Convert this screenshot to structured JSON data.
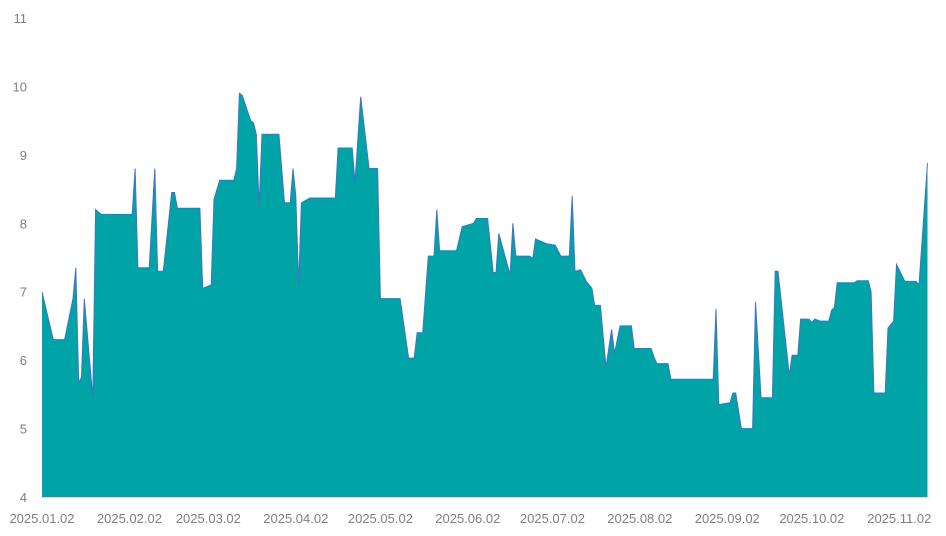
{
  "chart_data": {
    "type": "area",
    "title": "",
    "xlabel": "",
    "ylabel": "",
    "ylim": [
      4,
      11
    ],
    "yticks": [
      "4",
      "5",
      "6",
      "7",
      "8",
      "9",
      "10",
      "11"
    ],
    "xticks": [
      {
        "date": "2025-01-02",
        "label": "2025.01.02"
      },
      {
        "date": "2025-02-02",
        "label": "2025.02.02"
      },
      {
        "date": "2025-03-02",
        "label": "2025.03.02"
      },
      {
        "date": "2025-04-02",
        "label": "2025.04.02"
      },
      {
        "date": "2025-05-02",
        "label": "2025.05.02"
      },
      {
        "date": "2025-06-02",
        "label": "2025.06.02"
      },
      {
        "date": "2025-07-02",
        "label": "2025.07.02"
      },
      {
        "date": "2025-08-02",
        "label": "2025.08.02"
      },
      {
        "date": "2025-09-02",
        "label": "2025.09.02"
      },
      {
        "date": "2025-10-02",
        "label": "2025.10.02"
      },
      {
        "date": "2025-11-02",
        "label": "2025.11.02"
      }
    ],
    "grid": false,
    "legend": "none",
    "colors": {
      "fill": "#00A3A6",
      "line": "#4472C4",
      "axis": "#d9d9d9",
      "tick_text": "#7f7f7f"
    },
    "series": [
      {
        "points": [
          [
            "2025-01-02",
            7.0
          ],
          [
            "2025-01-06",
            6.3
          ],
          [
            "2025-01-10",
            6.3
          ],
          [
            "2025-01-13",
            6.9
          ],
          [
            "2025-01-14",
            7.35
          ],
          [
            "2025-01-15",
            5.67
          ],
          [
            "2025-01-16",
            5.75
          ],
          [
            "2025-01-17",
            6.9
          ],
          [
            "2025-01-20",
            5.45
          ],
          [
            "2025-01-21",
            8.2
          ],
          [
            "2025-01-23",
            8.13
          ],
          [
            "2025-02-03",
            8.13
          ],
          [
            "2025-02-04",
            8.8
          ],
          [
            "2025-02-05",
            7.35
          ],
          [
            "2025-02-09",
            7.35
          ],
          [
            "2025-02-11",
            8.8
          ],
          [
            "2025-02-12",
            7.3
          ],
          [
            "2025-02-14",
            7.3
          ],
          [
            "2025-02-17",
            8.45
          ],
          [
            "2025-02-18",
            8.45
          ],
          [
            "2025-02-19",
            8.22
          ],
          [
            "2025-02-27",
            8.22
          ],
          [
            "2025-02-28",
            7.05
          ],
          [
            "2025-03-03",
            7.1
          ],
          [
            "2025-03-04",
            8.35
          ],
          [
            "2025-03-06",
            8.63
          ],
          [
            "2025-03-11",
            8.63
          ],
          [
            "2025-03-12",
            8.8
          ],
          [
            "2025-03-13",
            9.9
          ],
          [
            "2025-03-14",
            9.87
          ],
          [
            "2025-03-17",
            9.5
          ],
          [
            "2025-03-18",
            9.47
          ],
          [
            "2025-03-19",
            9.3
          ],
          [
            "2025-03-20",
            8.25
          ],
          [
            "2025-03-21",
            9.3
          ],
          [
            "2025-03-27",
            9.3
          ],
          [
            "2025-03-29",
            8.3
          ],
          [
            "2025-03-31",
            8.3
          ],
          [
            "2025-04-01",
            8.8
          ],
          [
            "2025-04-02",
            8.4
          ],
          [
            "2025-04-03",
            7.1
          ],
          [
            "2025-04-04",
            8.3
          ],
          [
            "2025-04-07",
            8.37
          ],
          [
            "2025-04-16",
            8.37
          ],
          [
            "2025-04-17",
            9.1
          ],
          [
            "2025-04-22",
            9.1
          ],
          [
            "2025-04-23",
            8.6
          ],
          [
            "2025-04-25",
            9.85
          ],
          [
            "2025-04-28",
            8.8
          ],
          [
            "2025-05-01",
            8.8
          ],
          [
            "2025-05-02",
            6.9
          ],
          [
            "2025-05-09",
            6.9
          ],
          [
            "2025-05-12",
            6.03
          ],
          [
            "2025-05-14",
            6.03
          ],
          [
            "2025-05-15",
            6.4
          ],
          [
            "2025-05-17",
            6.4
          ],
          [
            "2025-05-19",
            7.52
          ],
          [
            "2025-05-21",
            7.52
          ],
          [
            "2025-05-22",
            8.2
          ],
          [
            "2025-05-23",
            7.6
          ],
          [
            "2025-05-29",
            7.6
          ],
          [
            "2025-05-31",
            7.95
          ],
          [
            "2025-06-04",
            8.0
          ],
          [
            "2025-06-05",
            8.07
          ],
          [
            "2025-06-09",
            8.07
          ],
          [
            "2025-06-11",
            7.28
          ],
          [
            "2025-06-12",
            7.28
          ],
          [
            "2025-06-13",
            7.85
          ],
          [
            "2025-06-17",
            7.25
          ],
          [
            "2025-06-18",
            8.0
          ],
          [
            "2025-06-19",
            7.52
          ],
          [
            "2025-06-24",
            7.52
          ],
          [
            "2025-06-25",
            7.48
          ],
          [
            "2025-06-26",
            7.77
          ],
          [
            "2025-06-30",
            7.7
          ],
          [
            "2025-07-03",
            7.68
          ],
          [
            "2025-07-05",
            7.52
          ],
          [
            "2025-07-08",
            7.52
          ],
          [
            "2025-07-09",
            8.4
          ],
          [
            "2025-07-10",
            7.3
          ],
          [
            "2025-07-12",
            7.32
          ],
          [
            "2025-07-14",
            7.15
          ],
          [
            "2025-07-16",
            7.05
          ],
          [
            "2025-07-17",
            6.8
          ],
          [
            "2025-07-19",
            6.8
          ],
          [
            "2025-07-21",
            5.9
          ],
          [
            "2025-07-23",
            6.45
          ],
          [
            "2025-07-24",
            6.1
          ],
          [
            "2025-07-26",
            6.5
          ],
          [
            "2025-07-30",
            6.5
          ],
          [
            "2025-07-31",
            6.17
          ],
          [
            "2025-08-06",
            6.17
          ],
          [
            "2025-08-07",
            6.05
          ],
          [
            "2025-08-08",
            5.95
          ],
          [
            "2025-08-12",
            5.95
          ],
          [
            "2025-08-13",
            5.72
          ],
          [
            "2025-08-28",
            5.72
          ],
          [
            "2025-08-29",
            6.75
          ],
          [
            "2025-08-30",
            5.35
          ],
          [
            "2025-09-03",
            5.38
          ],
          [
            "2025-09-04",
            5.52
          ],
          [
            "2025-09-05",
            5.52
          ],
          [
            "2025-09-07",
            5.0
          ],
          [
            "2025-09-11",
            5.0
          ],
          [
            "2025-09-12",
            6.85
          ],
          [
            "2025-09-14",
            5.45
          ],
          [
            "2025-09-18",
            5.45
          ],
          [
            "2025-09-19",
            7.3
          ],
          [
            "2025-09-20",
            7.3
          ],
          [
            "2025-09-24",
            5.78
          ],
          [
            "2025-09-25",
            6.07
          ],
          [
            "2025-09-27",
            6.07
          ],
          [
            "2025-09-28",
            6.6
          ],
          [
            "2025-10-01",
            6.6
          ],
          [
            "2025-10-02",
            6.55
          ],
          [
            "2025-10-03",
            6.6
          ],
          [
            "2025-10-05",
            6.57
          ],
          [
            "2025-10-08",
            6.57
          ],
          [
            "2025-10-09",
            6.73
          ],
          [
            "2025-10-10",
            6.77
          ],
          [
            "2025-10-11",
            7.13
          ],
          [
            "2025-10-17",
            7.13
          ],
          [
            "2025-10-18",
            7.16
          ],
          [
            "2025-10-22",
            7.16
          ],
          [
            "2025-10-23",
            7.0
          ],
          [
            "2025-10-24",
            5.52
          ],
          [
            "2025-10-28",
            5.52
          ],
          [
            "2025-10-29",
            6.47
          ],
          [
            "2025-10-31",
            6.57
          ],
          [
            "2025-11-01",
            7.4
          ],
          [
            "2025-11-04",
            7.15
          ],
          [
            "2025-11-08",
            7.15
          ],
          [
            "2025-11-09",
            7.1
          ],
          [
            "2025-11-12",
            8.88
          ]
        ]
      }
    ]
  }
}
